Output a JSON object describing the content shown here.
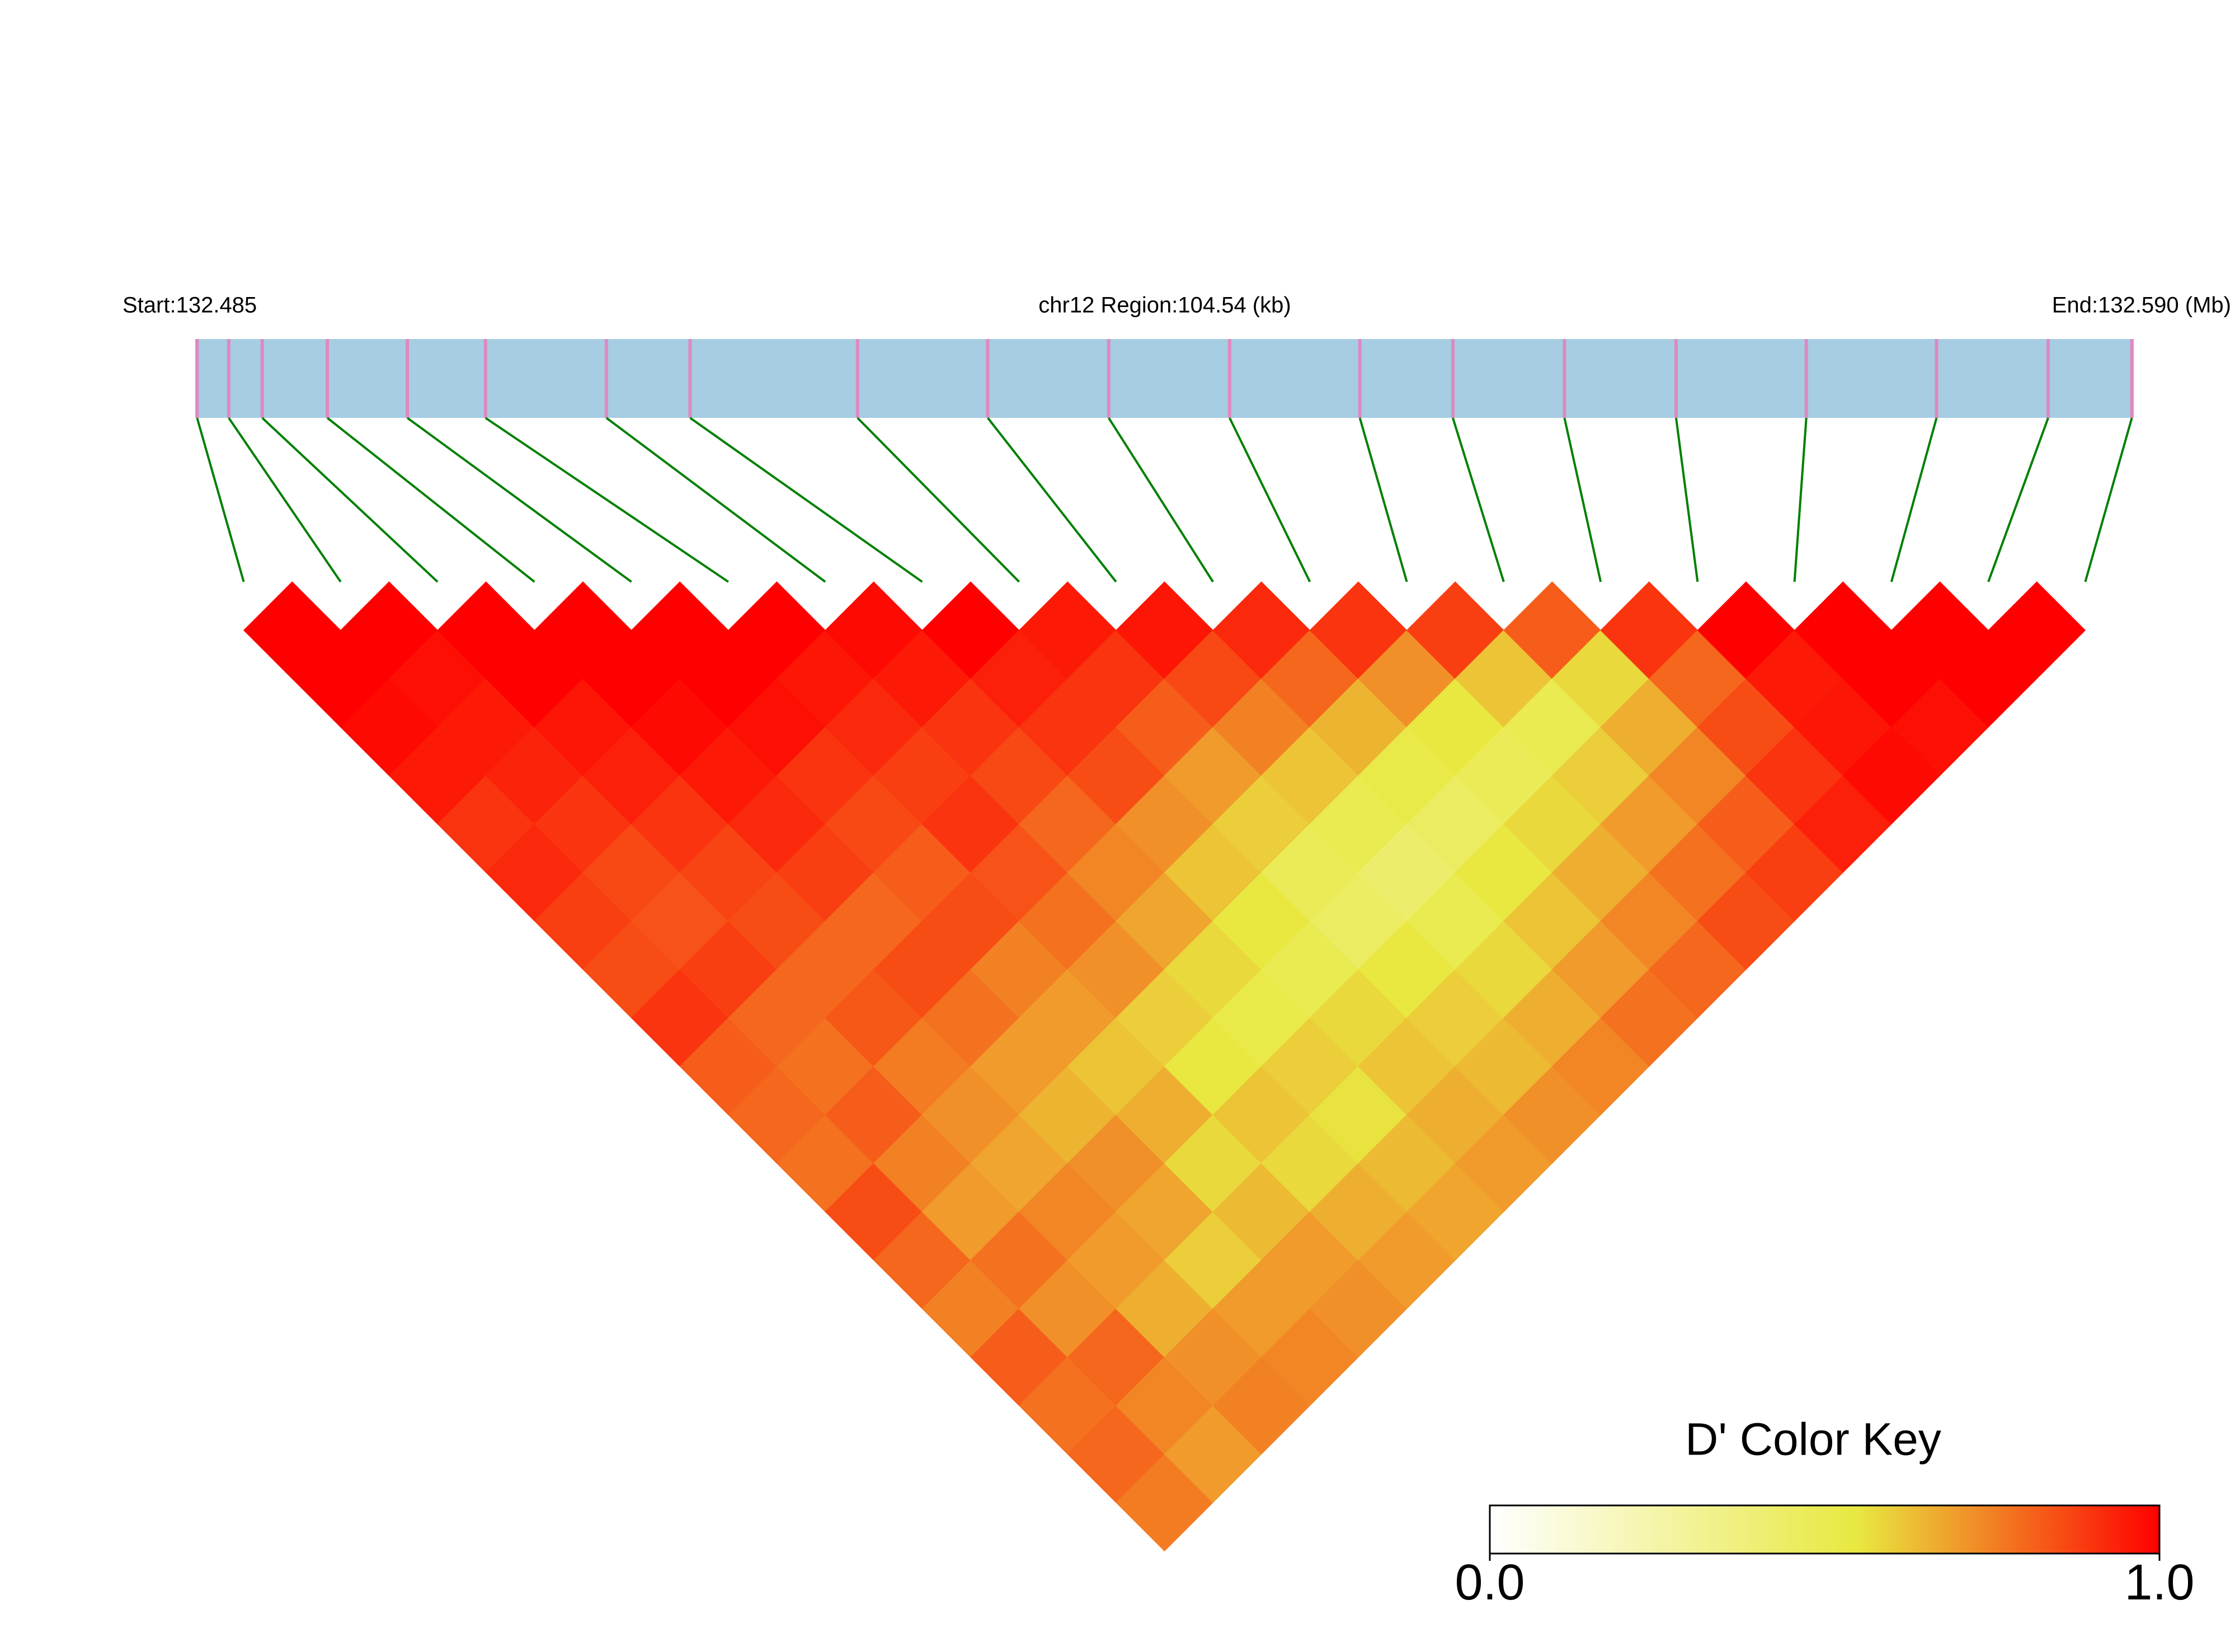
{
  "chart_data": {
    "type": "ld-heatmap",
    "start_label": "Start:132.485",
    "region_label": "chr12 Region:104.54 (kb)",
    "end_label": "End:132.590 (Mb)",
    "key_title": "D' Color Key",
    "x": [
      132.4855,
      132.4872,
      132.489,
      132.4925,
      132.4968,
      132.501,
      132.5075,
      132.512,
      132.521,
      132.528,
      132.5345,
      132.541,
      132.548,
      132.553,
      132.559,
      132.565,
      132.572,
      132.579,
      132.585,
      132.5895
    ],
    "xlim": [
      132.4854,
      132.5896
    ],
    "values": [
      [
        1,
        1,
        0.98,
        0.95,
        0.9,
        0.92,
        0.88,
        0.85,
        0.9,
        0.82,
        0.8,
        0.78,
        0.85,
        0.8,
        0.75,
        0.82,
        0.78,
        0.8,
        0.76
      ],
      [
        1,
        0.97,
        0.95,
        0.93,
        0.9,
        0.86,
        0.84,
        0.88,
        0.8,
        0.78,
        0.82,
        0.75,
        0.7,
        0.78,
        0.72,
        0.8,
        0.74,
        0.7
      ],
      [
        1,
        1,
        0.96,
        0.94,
        0.9,
        0.87,
        0.85,
        0.8,
        0.83,
        0.76,
        0.72,
        0.68,
        0.74,
        0.7,
        0.66,
        0.72,
        0.75
      ],
      [
        1,
        1,
        0.98,
        0.95,
        0.92,
        0.88,
        0.8,
        0.85,
        0.78,
        0.7,
        0.65,
        0.72,
        0.68,
        0.6,
        0.7,
        0.74
      ],
      [
        1,
        1,
        0.97,
        0.9,
        0.86,
        0.82,
        0.85,
        0.75,
        0.7,
        0.62,
        0.66,
        0.58,
        0.64,
        0.7,
        0.72
      ],
      [
        1,
        0.96,
        0.92,
        0.88,
        0.9,
        0.84,
        0.78,
        0.72,
        0.6,
        0.55,
        0.62,
        0.58,
        0.66,
        0.7
      ],
      [
        0.98,
        0.95,
        0.9,
        0.86,
        0.8,
        0.74,
        0.68,
        0.58,
        0.52,
        0.6,
        0.56,
        0.64,
        0.68
      ],
      [
        1,
        0.94,
        0.9,
        0.85,
        0.72,
        0.62,
        0.55,
        0.5,
        0.58,
        0.62,
        0.66,
        0.7
      ],
      [
        0.95,
        0.9,
        0.82,
        0.7,
        0.6,
        0.48,
        0.45,
        0.55,
        0.6,
        0.64,
        0.72
      ],
      [
        0.96,
        0.86,
        0.75,
        0.62,
        0.5,
        0.42,
        0.5,
        0.58,
        0.66,
        0.74
      ],
      [
        0.92,
        0.8,
        0.65,
        0.52,
        0.45,
        0.55,
        0.62,
        0.7,
        0.78
      ],
      [
        0.9,
        0.72,
        0.55,
        0.48,
        0.58,
        0.66,
        0.74,
        0.8
      ],
      [
        0.88,
        0.62,
        0.5,
        0.6,
        0.7,
        0.78,
        0.85
      ],
      [
        0.82,
        0.58,
        0.66,
        0.74,
        0.82,
        0.88
      ],
      [
        0.9,
        0.8,
        0.85,
        0.9,
        0.94
      ],
      [
        1,
        0.95,
        0.96,
        0.98
      ],
      [
        1,
        1,
        0.97
      ],
      [
        1,
        1
      ],
      [
        1
      ]
    ],
    "color_stops": [
      0,
      0.55,
      1
    ],
    "colors": [
      "#ffffff",
      "#e8e840",
      "#ff0000"
    ],
    "strip_color": "#a6cde2",
    "snp_color": "#e088c0",
    "link_color": "#008000",
    "key_ticks": [
      {
        "value": 0,
        "label": "0.0"
      },
      {
        "value": 1,
        "label": "1.0"
      }
    ]
  }
}
